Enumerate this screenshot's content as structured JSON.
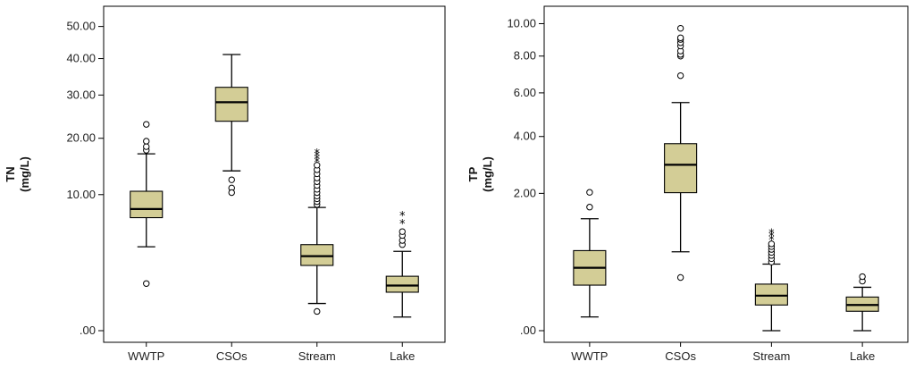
{
  "chart_data": [
    {
      "type": "boxplot",
      "ylabel": "TN",
      "ylabel_unit": "(mg/L)",
      "y_scale": "sqrt",
      "ylim": [
        0,
        55
      ],
      "y_ticks": [
        {
          "value": 0,
          "label": ".00"
        },
        {
          "value": 10,
          "label": "10.00"
        },
        {
          "value": 20,
          "label": "20.00"
        },
        {
          "value": 30,
          "label": "30.00"
        },
        {
          "value": 40,
          "label": "40.00"
        },
        {
          "value": 50,
          "label": "50.00"
        }
      ],
      "categories": [
        "WWTP",
        "CSOs",
        "Stream",
        "Lake"
      ],
      "grid": false,
      "box_color": "#d3cd96",
      "boxes": [
        {
          "category": "WWTP",
          "min": 3.8,
          "q1": 6.9,
          "median": 8.0,
          "q3": 10.5,
          "max": 16.9,
          "outliers": [
            1.2,
            17.6,
            18.3,
            19.4,
            23.0
          ],
          "extremes": []
        },
        {
          "category": "CSOs",
          "min": 13.8,
          "q1": 23.7,
          "median": 28.2,
          "q3": 32.0,
          "max": 41.2,
          "outliers": [
            12.3,
            11.0,
            10.3
          ],
          "extremes": []
        },
        {
          "category": "Stream",
          "min": 0.4,
          "q1": 2.3,
          "median": 3.0,
          "q3": 4.0,
          "max": 8.2,
          "outliers": [
            0.2,
            8.6,
            9.0,
            9.4,
            9.8,
            10.3,
            10.8,
            11.4,
            12.0,
            12.6,
            13.3,
            14.0,
            14.8
          ],
          "extremes": [
            15.4,
            16.0,
            16.6,
            17.1
          ]
        },
        {
          "category": "Lake",
          "min": 0.1,
          "q1": 0.8,
          "median": 1.1,
          "q3": 1.6,
          "max": 3.4,
          "outliers": [
            4.0,
            4.4,
            4.9,
            5.3
          ],
          "extremes": [
            6.2,
            7.2
          ]
        }
      ]
    },
    {
      "type": "boxplot",
      "ylabel": "TP",
      "ylabel_unit": "(mg/L)",
      "y_scale": "sqrt",
      "ylim": [
        0,
        10.8
      ],
      "y_ticks": [
        {
          "value": 0,
          "label": ".00"
        },
        {
          "value": 2,
          "label": "2.00"
        },
        {
          "value": 4,
          "label": "4.00"
        },
        {
          "value": 6,
          "label": "6.00"
        },
        {
          "value": 8,
          "label": "8.00"
        },
        {
          "value": 10,
          "label": "10.00"
        }
      ],
      "categories": [
        "WWTP",
        "CSOs",
        "Stream",
        "Lake"
      ],
      "grid": false,
      "box_color": "#d3cd96",
      "boxes": [
        {
          "category": "WWTP",
          "min": 0.02,
          "q1": 0.22,
          "median": 0.42,
          "q3": 0.68,
          "max": 1.33,
          "outliers": [
            1.62,
            2.03
          ],
          "extremes": []
        },
        {
          "category": "CSOs",
          "min": 0.66,
          "q1": 2.02,
          "median": 2.92,
          "q3": 3.71,
          "max": 5.52,
          "outliers": [
            0.3,
            6.9,
            8.0,
            8.1,
            8.3,
            8.6,
            8.8,
            9.0,
            9.1,
            9.7
          ],
          "extremes": []
        },
        {
          "category": "Stream",
          "min": 0.0,
          "q1": 0.07,
          "median": 0.13,
          "q3": 0.23,
          "max": 0.47,
          "outliers": [
            0.5,
            0.55,
            0.6,
            0.65,
            0.7,
            0.75,
            0.8
          ],
          "extremes": [
            0.88,
            0.95,
            1.02
          ]
        },
        {
          "category": "Lake",
          "min": 0.0,
          "q1": 0.04,
          "median": 0.07,
          "q3": 0.12,
          "max": 0.2,
          "outliers": [
            0.26,
            0.31
          ],
          "extremes": []
        }
      ]
    }
  ]
}
